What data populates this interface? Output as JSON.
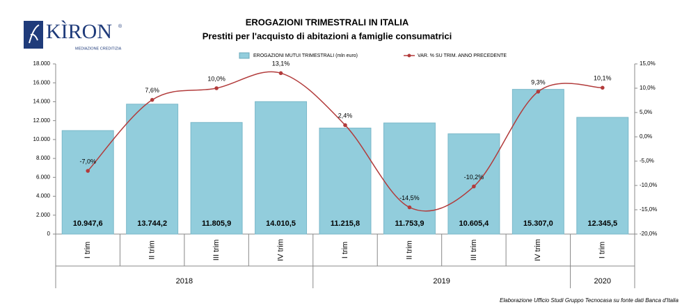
{
  "logo": {
    "name": "KÌRON",
    "mark": "®",
    "tagline": "MEDIAZIONE CREDITIZIA"
  },
  "chart_data": {
    "type": "bar",
    "title": "EROGAZIONI TRIMESTRALI IN ITALIA",
    "subtitle": "Prestiti per l'acquisto di abitazioni a famiglie consumatrici",
    "groups": [
      {
        "label": "2018",
        "categories": [
          "I trim",
          "II trim",
          "III trim",
          "IV trim"
        ]
      },
      {
        "label": "2019",
        "categories": [
          "I trim",
          "II trim",
          "III trim",
          "IV trim"
        ]
      },
      {
        "label": "2020",
        "categories": [
          "I trim"
        ]
      }
    ],
    "series": [
      {
        "name": "EROGAZIONI MUTUI TRIMESTRALI (mln euro)",
        "type": "bar",
        "axis": "y",
        "color": "#92cddc",
        "values": [
          10947.6,
          13744.2,
          11805.9,
          14010.5,
          11215.8,
          11753.9,
          10605.4,
          15307.0,
          12345.5
        ],
        "value_labels": [
          "10.947,6",
          "13.744,2",
          "11.805,9",
          "14.010,5",
          "11.215,8",
          "11.753,9",
          "10.605,4",
          "15.307,0",
          "12.345,5"
        ]
      },
      {
        "name": "VAR. % SU TRIM. ANNO PRECEDENTE",
        "type": "line",
        "axis": "y2",
        "color": "#b23b3b",
        "values": [
          -7.0,
          7.6,
          10.0,
          13.1,
          2.4,
          -14.5,
          -10.2,
          9.3,
          10.1
        ],
        "value_labels": [
          "-7,0%",
          "7,6%",
          "10,0%",
          "13,1%",
          "2,4%",
          "-14,5%",
          "-10,2%",
          "9,3%",
          "10,1%"
        ]
      }
    ],
    "ylim": [
      0,
      18000
    ],
    "yticks": [
      0,
      {
        "value": 2000,
        "label": "2.000"
      },
      {
        "value": 4000,
        "label": "4.000"
      },
      {
        "value": 6000,
        "label": "6.000"
      },
      {
        "value": 8000,
        "label": "8.000"
      },
      {
        "value": 10000,
        "label": "10.000"
      },
      {
        "value": 12000,
        "label": "12.000"
      },
      {
        "value": 14000,
        "label": "14.000"
      },
      {
        "value": 16000,
        "label": "16.000"
      },
      {
        "value": 18000,
        "label": "18.000"
      }
    ],
    "y2lim": [
      -20,
      15
    ],
    "y2ticks": [
      {
        "value": -20,
        "label": "-20,0%"
      },
      {
        "value": -15,
        "label": "-15,0%"
      },
      {
        "value": -10,
        "label": "-10,0%"
      },
      {
        "value": -5,
        "label": "-5,0%"
      },
      {
        "value": 0,
        "label": "0,0%"
      },
      {
        "value": 5,
        "label": "5,0%"
      },
      {
        "value": 10,
        "label": "10,0%"
      },
      {
        "value": 15,
        "label": "15,0%"
      }
    ],
    "legend": "top",
    "source": "Elaborazione Ufficio Studi Gruppo Tecnocasa su fonte dati Banca d'Italia"
  }
}
